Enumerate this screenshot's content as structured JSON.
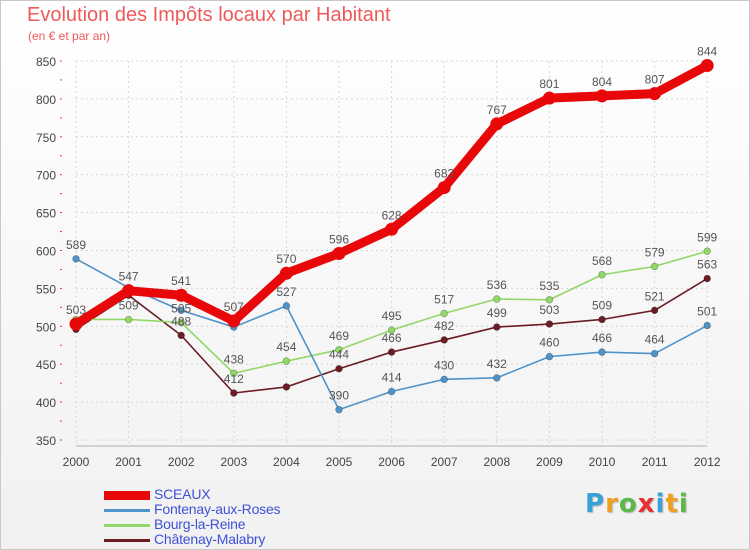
{
  "header": {
    "title": "Evolution des Impôts locaux par Habitant",
    "subtitle": "(en € et par an)"
  },
  "brand": {
    "letters": [
      "P",
      "r",
      "o",
      "x",
      "i",
      "t",
      "i"
    ],
    "colors": [
      "#3aa0d8",
      "#f0a020",
      "#5cb848",
      "#e83030",
      "#3aa0d8",
      "#f0a020",
      "#5cb848"
    ]
  },
  "chart_data": {
    "type": "line",
    "title": "Evolution des Impôts locaux par Habitant",
    "subtitle": "(en € et par an)",
    "xlabel": "",
    "ylabel": "",
    "categories": [
      "2000",
      "2001",
      "2002",
      "2003",
      "2004",
      "2005",
      "2006",
      "2007",
      "2008",
      "2009",
      "2010",
      "2011",
      "2012"
    ],
    "ylim": [
      350,
      850
    ],
    "yticks": [
      350,
      400,
      450,
      500,
      550,
      600,
      650,
      700,
      750,
      800,
      850
    ],
    "grid": true,
    "legend_position": "bottom-left",
    "series": [
      {
        "name": "SCEAUX",
        "color": "#e8080a",
        "values": [
          503,
          547,
          541,
          507,
          570,
          596,
          628,
          683,
          767,
          801,
          804,
          807,
          844
        ],
        "labels": [
          "503",
          "547",
          "541",
          "507",
          "570",
          "596",
          "628",
          "683",
          "767",
          "801",
          "804",
          "807",
          "844"
        ]
      },
      {
        "name": "Fontenay-aux-Roses",
        "color": "#4f93c9",
        "values": [
          589,
          551,
          521,
          499,
          527,
          390,
          414,
          430,
          432,
          460,
          466,
          464,
          501
        ],
        "labels": [
          "589",
          "",
          "",
          "",
          "527",
          "390",
          "414",
          "430",
          "432",
          "460",
          "466",
          "464",
          "501"
        ]
      },
      {
        "name": "Bourg-la-Reine",
        "color": "#92d868",
        "values": [
          509,
          509,
          505,
          438,
          454,
          469,
          495,
          517,
          536,
          535,
          568,
          579,
          599
        ],
        "labels": [
          "",
          "509",
          "505",
          "438",
          "454",
          "469",
          "495",
          "517",
          "536",
          "535",
          "568",
          "579",
          "599"
        ]
      },
      {
        "name": "Châtenay-Malabry",
        "color": "#6b1d25",
        "values": [
          496,
          541,
          488,
          412,
          420,
          444,
          466,
          482,
          499,
          503,
          509,
          521,
          563
        ],
        "labels": [
          "",
          "",
          "488",
          "412",
          "",
          "444",
          "466",
          "482",
          "499",
          "503",
          "509",
          "521",
          "563"
        ]
      }
    ]
  }
}
